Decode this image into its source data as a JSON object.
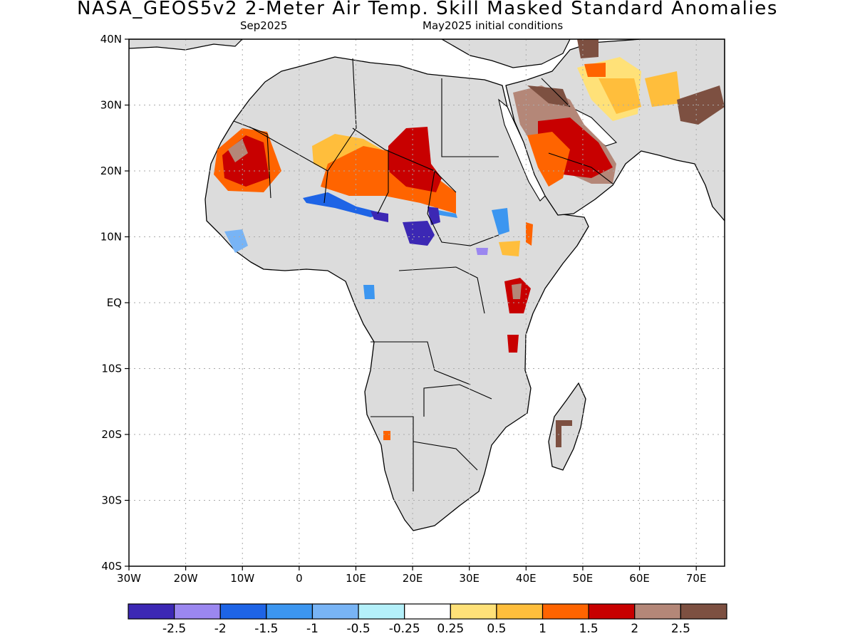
{
  "header": {
    "title": "NASA_GEOS5v2 2-Meter Air Temp. Skill Masked Standard Anomalies",
    "valid_month": "Sep2025",
    "init_conditions": "May2025 initial conditions"
  },
  "axes": {
    "lon_range": [
      -30,
      75
    ],
    "lat_range": [
      -40,
      40
    ],
    "x_ticks": [
      {
        "lon": -30,
        "label": "30W"
      },
      {
        "lon": -20,
        "label": "20W"
      },
      {
        "lon": -10,
        "label": "10W"
      },
      {
        "lon": 0,
        "label": "0"
      },
      {
        "lon": 10,
        "label": "10E"
      },
      {
        "lon": 20,
        "label": "20E"
      },
      {
        "lon": 30,
        "label": "30E"
      },
      {
        "lon": 40,
        "label": "40E"
      },
      {
        "lon": 50,
        "label": "50E"
      },
      {
        "lon": 60,
        "label": "60E"
      },
      {
        "lon": 70,
        "label": "70E"
      }
    ],
    "y_ticks": [
      {
        "lat": 40,
        "label": "40N"
      },
      {
        "lat": 30,
        "label": "30N"
      },
      {
        "lat": 20,
        "label": "20N"
      },
      {
        "lat": 10,
        "label": "10N"
      },
      {
        "lat": 0,
        "label": "EQ"
      },
      {
        "lat": -10,
        "label": "10S"
      },
      {
        "lat": -20,
        "label": "20S"
      },
      {
        "lat": -30,
        "label": "30S"
      },
      {
        "lat": -40,
        "label": "40S"
      }
    ],
    "grid": true
  },
  "colorbar": {
    "colors": [
      "#3c28b4",
      "#9b87f0",
      "#1e64e6",
      "#3c96f0",
      "#78b4f5",
      "#b4f0fa",
      "#ffffff",
      "#ffe178",
      "#ffbe3c",
      "#ff6400",
      "#c80000",
      "#b48778",
      "#7d5041"
    ],
    "labels": [
      "-2.5",
      "-2",
      "-1.5",
      "-1",
      "-0.5",
      "-0.25",
      "0.25",
      "0.5",
      "1",
      "1.5",
      "2",
      "2.5"
    ]
  },
  "colors": {
    "land_masked": "#dcdcdc",
    "outline": "#000000",
    "grid": "#aaaaaa"
  }
}
